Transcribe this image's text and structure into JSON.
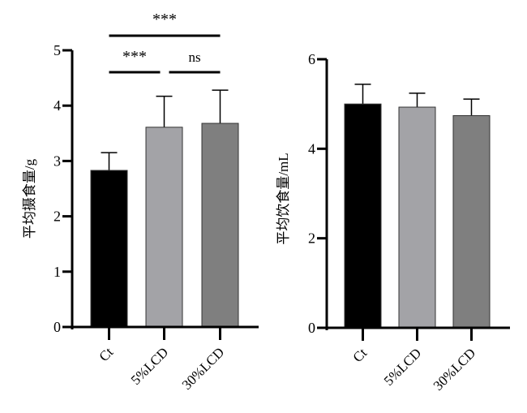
{
  "chart_data": [
    {
      "type": "bar",
      "ylabel": "平均摄食量/g",
      "categories": [
        "Ct",
        "5%LCD",
        "30%LCD"
      ],
      "values": [
        2.83,
        3.61,
        3.68
      ],
      "error_upper": [
        3.15,
        4.17,
        4.28
      ],
      "colors": [
        "#000000",
        "#a3a3a7",
        "#7f7f7f"
      ],
      "ylim": [
        0,
        5
      ],
      "yticks": [
        0,
        1,
        2,
        3,
        4,
        5
      ],
      "grid": false,
      "significance": [
        {
          "from": 0,
          "to": 2,
          "label": "***",
          "level": "top"
        },
        {
          "from": 0,
          "to": 1,
          "label": "***",
          "level": "lower"
        },
        {
          "from": 1,
          "to": 2,
          "label": "ns",
          "level": "lower"
        }
      ]
    },
    {
      "type": "bar",
      "ylabel": "平均饮食量/mL",
      "categories": [
        "Ct",
        "5%LCD",
        "30%LCD"
      ],
      "values": [
        5.0,
        4.93,
        4.74
      ],
      "error_upper": [
        5.44,
        5.24,
        5.11
      ],
      "colors": [
        "#000000",
        "#a3a3a7",
        "#7f7f7f"
      ],
      "ylim": [
        0,
        6
      ],
      "yticks": [
        0,
        2,
        4,
        6
      ],
      "grid": false
    }
  ]
}
